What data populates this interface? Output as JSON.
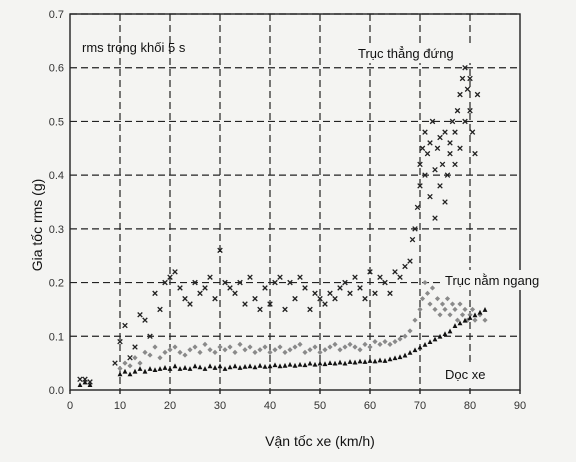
{
  "chart_data": {
    "type": "scatter",
    "title": "",
    "xlabel": "Vận tốc xe (km/h)",
    "ylabel": "Gia tốc rms (g)",
    "xlim": [
      0,
      90
    ],
    "ylim": [
      0,
      0.7
    ],
    "xticks": [
      "0",
      "10",
      "20",
      "30",
      "40",
      "50",
      "60",
      "70",
      "80",
      "90"
    ],
    "yticks": [
      "0.0",
      "0.1",
      "0.2",
      "0.3",
      "0.4",
      "0.5",
      "0.6",
      "0.7"
    ],
    "grid": true,
    "annotations": {
      "block_note": "rms trong khối 5 s",
      "vertical": "Trục thẳng đứng",
      "lateral": "Trục nằm ngang",
      "longitudinal": "Dọc xe"
    },
    "series": [
      {
        "label": "Trục thẳng đứng",
        "marker": "x",
        "color": "#222222",
        "points": [
          [
            2,
            0.02
          ],
          [
            3,
            0.02
          ],
          [
            4,
            0.015
          ],
          [
            9,
            0.05
          ],
          [
            10,
            0.09
          ],
          [
            11,
            0.12
          ],
          [
            12,
            0.06
          ],
          [
            13,
            0.08
          ],
          [
            14,
            0.14
          ],
          [
            15,
            0.13
          ],
          [
            16,
            0.1
          ],
          [
            17,
            0.18
          ],
          [
            18,
            0.15
          ],
          [
            19,
            0.2
          ],
          [
            20,
            0.21
          ],
          [
            21,
            0.22
          ],
          [
            22,
            0.19
          ],
          [
            23,
            0.17
          ],
          [
            24,
            0.16
          ],
          [
            25,
            0.2
          ],
          [
            26,
            0.18
          ],
          [
            27,
            0.19
          ],
          [
            28,
            0.21
          ],
          [
            29,
            0.17
          ],
          [
            30,
            0.26
          ],
          [
            31,
            0.2
          ],
          [
            32,
            0.19
          ],
          [
            33,
            0.18
          ],
          [
            34,
            0.2
          ],
          [
            35,
            0.16
          ],
          [
            36,
            0.21
          ],
          [
            37,
            0.17
          ],
          [
            38,
            0.15
          ],
          [
            39,
            0.19
          ],
          [
            40,
            0.16
          ],
          [
            41,
            0.2
          ],
          [
            42,
            0.21
          ],
          [
            43,
            0.15
          ],
          [
            44,
            0.2
          ],
          [
            45,
            0.17
          ],
          [
            46,
            0.21
          ],
          [
            47,
            0.19
          ],
          [
            48,
            0.15
          ],
          [
            49,
            0.18
          ],
          [
            50,
            0.17
          ],
          [
            51,
            0.16
          ],
          [
            52,
            0.18
          ],
          [
            53,
            0.17
          ],
          [
            54,
            0.19
          ],
          [
            55,
            0.2
          ],
          [
            56,
            0.18
          ],
          [
            57,
            0.21
          ],
          [
            58,
            0.19
          ],
          [
            59,
            0.17
          ],
          [
            60,
            0.22
          ],
          [
            61,
            0.18
          ],
          [
            62,
            0.21
          ],
          [
            63,
            0.2
          ],
          [
            64,
            0.18
          ],
          [
            65,
            0.22
          ],
          [
            66,
            0.21
          ],
          [
            67,
            0.23
          ],
          [
            68,
            0.24
          ],
          [
            68.5,
            0.28
          ],
          [
            69,
            0.3
          ],
          [
            69.5,
            0.34
          ],
          [
            70,
            0.38
          ],
          [
            70,
            0.42
          ],
          [
            70.5,
            0.45
          ],
          [
            71,
            0.48
          ],
          [
            71,
            0.4
          ],
          [
            71.5,
            0.44
          ],
          [
            72,
            0.36
          ],
          [
            72,
            0.46
          ],
          [
            72.5,
            0.5
          ],
          [
            73,
            0.41
          ],
          [
            73,
            0.32
          ],
          [
            73.5,
            0.45
          ],
          [
            74,
            0.38
          ],
          [
            74,
            0.47
          ],
          [
            74.5,
            0.42
          ],
          [
            75,
            0.48
          ],
          [
            75,
            0.35
          ],
          [
            75.5,
            0.4
          ],
          [
            76,
            0.46
          ],
          [
            76,
            0.44
          ],
          [
            76.5,
            0.5
          ],
          [
            77,
            0.42
          ],
          [
            77,
            0.48
          ],
          [
            77.5,
            0.52
          ],
          [
            78,
            0.55
          ],
          [
            78,
            0.45
          ],
          [
            78.5,
            0.58
          ],
          [
            79,
            0.5
          ],
          [
            79,
            0.6
          ],
          [
            79.5,
            0.56
          ],
          [
            80,
            0.52
          ],
          [
            80,
            0.58
          ],
          [
            80.5,
            0.48
          ],
          [
            81,
            0.44
          ],
          [
            81.5,
            0.55
          ]
        ]
      },
      {
        "label": "Trục nằm ngang",
        "marker": "diamond",
        "color": "#8a8a8a",
        "points": [
          [
            10,
            0.04
          ],
          [
            11,
            0.05
          ],
          [
            12,
            0.045
          ],
          [
            13,
            0.06
          ],
          [
            14,
            0.05
          ],
          [
            15,
            0.07
          ],
          [
            16,
            0.065
          ],
          [
            17,
            0.08
          ],
          [
            18,
            0.06
          ],
          [
            19,
            0.07
          ],
          [
            20,
            0.075
          ],
          [
            21,
            0.08
          ],
          [
            22,
            0.07
          ],
          [
            23,
            0.065
          ],
          [
            24,
            0.075
          ],
          [
            25,
            0.08
          ],
          [
            26,
            0.07
          ],
          [
            27,
            0.085
          ],
          [
            28,
            0.075
          ],
          [
            29,
            0.07
          ],
          [
            30,
            0.08
          ],
          [
            31,
            0.075
          ],
          [
            32,
            0.08
          ],
          [
            33,
            0.07
          ],
          [
            34,
            0.085
          ],
          [
            35,
            0.075
          ],
          [
            36,
            0.08
          ],
          [
            37,
            0.07
          ],
          [
            38,
            0.075
          ],
          [
            39,
            0.08
          ],
          [
            40,
            0.07
          ],
          [
            41,
            0.075
          ],
          [
            42,
            0.08
          ],
          [
            43,
            0.07
          ],
          [
            44,
            0.075
          ],
          [
            45,
            0.08
          ],
          [
            46,
            0.085
          ],
          [
            47,
            0.07
          ],
          [
            48,
            0.075
          ],
          [
            49,
            0.08
          ],
          [
            50,
            0.07
          ],
          [
            51,
            0.075
          ],
          [
            52,
            0.08
          ],
          [
            53,
            0.085
          ],
          [
            54,
            0.075
          ],
          [
            55,
            0.08
          ],
          [
            56,
            0.085
          ],
          [
            57,
            0.08
          ],
          [
            58,
            0.075
          ],
          [
            59,
            0.085
          ],
          [
            60,
            0.08
          ],
          [
            61,
            0.09
          ],
          [
            62,
            0.085
          ],
          [
            63,
            0.09
          ],
          [
            64,
            0.085
          ],
          [
            65,
            0.09
          ],
          [
            66,
            0.095
          ],
          [
            67,
            0.1
          ],
          [
            68,
            0.11
          ],
          [
            69,
            0.13
          ],
          [
            70,
            0.15
          ],
          [
            70.5,
            0.17
          ],
          [
            71,
            0.2
          ],
          [
            71.5,
            0.18
          ],
          [
            72,
            0.16
          ],
          [
            72.5,
            0.19
          ],
          [
            73,
            0.15
          ],
          [
            73.5,
            0.17
          ],
          [
            74,
            0.14
          ],
          [
            74.5,
            0.16
          ],
          [
            75,
            0.15
          ],
          [
            75.5,
            0.17
          ],
          [
            76,
            0.14
          ],
          [
            76.5,
            0.16
          ],
          [
            77,
            0.15
          ],
          [
            77.5,
            0.13
          ],
          [
            78,
            0.16
          ],
          [
            78.5,
            0.14
          ],
          [
            79,
            0.15
          ],
          [
            79.5,
            0.13
          ],
          [
            80,
            0.14
          ],
          [
            80.5,
            0.15
          ],
          [
            81,
            0.13
          ],
          [
            82,
            0.14
          ],
          [
            83,
            0.13
          ]
        ]
      },
      {
        "label": "Dọc xe",
        "marker": "triangle",
        "color": "#111111",
        "points": [
          [
            2,
            0.01
          ],
          [
            3,
            0.015
          ],
          [
            4,
            0.01
          ],
          [
            10,
            0.03
          ],
          [
            11,
            0.035
          ],
          [
            12,
            0.03
          ],
          [
            13,
            0.035
          ],
          [
            14,
            0.04
          ],
          [
            15,
            0.035
          ],
          [
            16,
            0.04
          ],
          [
            17,
            0.038
          ],
          [
            18,
            0.04
          ],
          [
            19,
            0.042
          ],
          [
            20,
            0.04
          ],
          [
            21,
            0.045
          ],
          [
            22,
            0.04
          ],
          [
            23,
            0.042
          ],
          [
            24,
            0.04
          ],
          [
            25,
            0.045
          ],
          [
            26,
            0.043
          ],
          [
            27,
            0.04
          ],
          [
            28,
            0.045
          ],
          [
            29,
            0.042
          ],
          [
            30,
            0.045
          ],
          [
            31,
            0.04
          ],
          [
            32,
            0.043
          ],
          [
            33,
            0.045
          ],
          [
            34,
            0.042
          ],
          [
            35,
            0.044
          ],
          [
            36,
            0.045
          ],
          [
            37,
            0.043
          ],
          [
            38,
            0.046
          ],
          [
            39,
            0.044
          ],
          [
            40,
            0.045
          ],
          [
            41,
            0.047
          ],
          [
            42,
            0.045
          ],
          [
            43,
            0.046
          ],
          [
            44,
            0.048
          ],
          [
            45,
            0.046
          ],
          [
            46,
            0.048
          ],
          [
            47,
            0.047
          ],
          [
            48,
            0.05
          ],
          [
            49,
            0.048
          ],
          [
            50,
            0.05
          ],
          [
            51,
            0.049
          ],
          [
            52,
            0.051
          ],
          [
            53,
            0.05
          ],
          [
            54,
            0.052
          ],
          [
            55,
            0.05
          ],
          [
            56,
            0.053
          ],
          [
            57,
            0.052
          ],
          [
            58,
            0.054
          ],
          [
            59,
            0.053
          ],
          [
            60,
            0.055
          ],
          [
            61,
            0.054
          ],
          [
            62,
            0.056
          ],
          [
            63,
            0.055
          ],
          [
            64,
            0.058
          ],
          [
            65,
            0.06
          ],
          [
            66,
            0.062
          ],
          [
            67,
            0.065
          ],
          [
            68,
            0.07
          ],
          [
            69,
            0.075
          ],
          [
            70,
            0.08
          ],
          [
            71,
            0.085
          ],
          [
            72,
            0.09
          ],
          [
            73,
            0.095
          ],
          [
            74,
            0.1
          ],
          [
            75,
            0.105
          ],
          [
            76,
            0.11
          ],
          [
            77,
            0.12
          ],
          [
            78,
            0.125
          ],
          [
            79,
            0.13
          ],
          [
            80,
            0.135
          ],
          [
            81,
            0.14
          ],
          [
            82,
            0.145
          ],
          [
            83,
            0.15
          ]
        ]
      }
    ]
  }
}
